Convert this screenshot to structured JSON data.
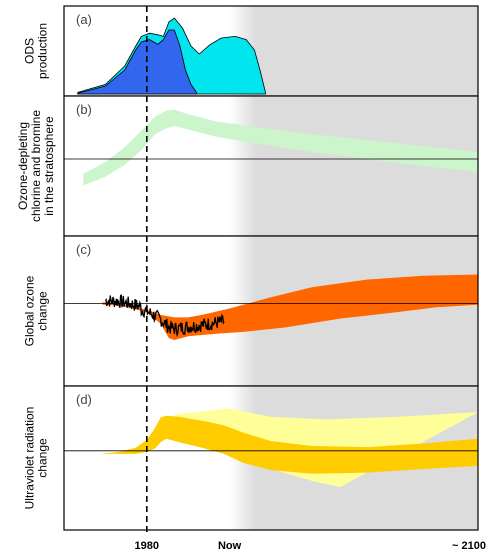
{
  "chart_data": {
    "type": "area",
    "x_axis": {
      "tick_labels": [
        "1980",
        "Now",
        "~ 2100"
      ],
      "tick_years": [
        1980,
        2010,
        2100
      ],
      "range": [
        1950,
        2100
      ]
    },
    "vertical_marker_year": 1980,
    "future_shading": {
      "from_year": 2010,
      "color": "#dcdcdc"
    },
    "panels": [
      {
        "label": "(a)",
        "ylabel_lines": [
          "ODS",
          "production"
        ],
        "baseline": false,
        "series": [
          {
            "color": "#00e5ee",
            "upper": [
              [
                1955,
                0.02
              ],
              [
                1965,
                0.12
              ],
              [
                1972,
                0.35
              ],
              [
                1976,
                0.6
              ],
              [
                1978,
                0.72
              ],
              [
                1981,
                0.76
              ],
              [
                1984,
                0.74
              ],
              [
                1986,
                0.72
              ],
              [
                1988,
                0.9
              ],
              [
                1990,
                0.95
              ],
              [
                1993,
                0.82
              ],
              [
                1996,
                0.6
              ],
              [
                1999,
                0.5
              ],
              [
                2003,
                0.62
              ],
              [
                2007,
                0.7
              ],
              [
                2012,
                0.72
              ],
              [
                2016,
                0.68
              ],
              [
                2019,
                0.55
              ],
              [
                2021,
                0.3
              ],
              [
                2023,
                0.02
              ]
            ],
            "lower": [
              [
                1955,
                0.0
              ],
              [
                2023,
                0.0
              ]
            ]
          },
          {
            "color": "#3366ee",
            "upper": [
              [
                1955,
                0.01
              ],
              [
                1965,
                0.1
              ],
              [
                1972,
                0.3
              ],
              [
                1976,
                0.55
              ],
              [
                1978,
                0.65
              ],
              [
                1981,
                0.68
              ],
              [
                1984,
                0.62
              ],
              [
                1986,
                0.68
              ],
              [
                1988,
                0.8
              ],
              [
                1990,
                0.8
              ],
              [
                1992,
                0.6
              ],
              [
                1994,
                0.3
              ],
              [
                1996,
                0.12
              ],
              [
                1998,
                0.02
              ]
            ],
            "lower": [
              [
                1955,
                0.0
              ],
              [
                1998,
                0.0
              ]
            ]
          }
        ]
      },
      {
        "label": "(b)",
        "ylabel_lines": [
          "Ozone-depleting",
          "chlorine and bromine",
          "in the stratosphere"
        ],
        "baseline": true,
        "series": [
          {
            "color": "#ccf5cc",
            "upper": [
              [
                1957,
                -0.25
              ],
              [
                1965,
                -0.05
              ],
              [
                1972,
                0.2
              ],
              [
                1978,
                0.48
              ],
              [
                1983,
                0.72
              ],
              [
                1987,
                0.82
              ],
              [
                1990,
                0.84
              ],
              [
                1995,
                0.76
              ],
              [
                2005,
                0.64
              ],
              [
                2020,
                0.54
              ],
              [
                2040,
                0.42
              ],
              [
                2060,
                0.32
              ],
              [
                2080,
                0.22
              ],
              [
                2100,
                0.12
              ]
            ],
            "lower": [
              [
                1957,
                -0.45
              ],
              [
                1965,
                -0.3
              ],
              [
                1972,
                -0.1
              ],
              [
                1978,
                0.15
              ],
              [
                1983,
                0.42
              ],
              [
                1987,
                0.52
              ],
              [
                1990,
                0.56
              ],
              [
                1995,
                0.5
              ],
              [
                2005,
                0.38
              ],
              [
                2020,
                0.26
              ],
              [
                2040,
                0.12
              ],
              [
                2060,
                0.0
              ],
              [
                2080,
                -0.12
              ],
              [
                2100,
                -0.22
              ]
            ]
          }
        ]
      },
      {
        "label": "(c)",
        "ylabel_lines": [
          "Global ozone",
          "change"
        ],
        "baseline": true,
        "series": [
          {
            "color": "#ff6600",
            "upper": [
              [
                1964,
                0.02
              ],
              [
                1970,
                0.0
              ],
              [
                1975,
                -0.05
              ],
              [
                1980,
                -0.1
              ],
              [
                1985,
                -0.18
              ],
              [
                1990,
                -0.22
              ],
              [
                1995,
                -0.22
              ],
              [
                2000,
                -0.18
              ],
              [
                2010,
                -0.08
              ],
              [
                2025,
                0.1
              ],
              [
                2040,
                0.26
              ],
              [
                2060,
                0.38
              ],
              [
                2080,
                0.44
              ],
              [
                2100,
                0.46
              ]
            ],
            "lower": [
              [
                1964,
                -0.02
              ],
              [
                1970,
                -0.03
              ],
              [
                1975,
                -0.08
              ],
              [
                1980,
                -0.14
              ],
              [
                1985,
                -0.32
              ],
              [
                1988,
                -0.55
              ],
              [
                1990,
                -0.58
              ],
              [
                1995,
                -0.52
              ],
              [
                2005,
                -0.48
              ],
              [
                2015,
                -0.45
              ],
              [
                2030,
                -0.38
              ],
              [
                2050,
                -0.24
              ],
              [
                2070,
                -0.14
              ],
              [
                2085,
                -0.06
              ],
              [
                2100,
                -0.02
              ]
            ]
          }
        ],
        "observations": {
          "color": "#000000",
          "from_year": 1965,
          "to_year": 2008
        }
      },
      {
        "label": "(d)",
        "ylabel_lines": [
          "Ultraviolet radiation",
          "change"
        ],
        "baseline": true,
        "series": [
          {
            "color": "#ffff99",
            "upper": [
              [
                1990,
                0.6
              ],
              [
                2000,
                0.65
              ],
              [
                2010,
                0.7
              ],
              [
                2025,
                0.56
              ],
              [
                2045,
                0.52
              ],
              [
                2070,
                0.56
              ],
              [
                2100,
                0.64
              ]
            ],
            "lower": [
              [
                1990,
                0.3
              ],
              [
                2000,
                0.2
              ],
              [
                2010,
                0.05
              ],
              [
                2025,
                -0.3
              ],
              [
                2040,
                -0.5
              ],
              [
                2050,
                -0.6
              ]
            ]
          },
          {
            "color": "#ffcc00",
            "upper": [
              [
                1963,
                -0.05
              ],
              [
                1970,
                -0.02
              ],
              [
                1976,
                0.05
              ],
              [
                1980,
                0.18
              ],
              [
                1983,
                0.38
              ],
              [
                1985,
                0.55
              ],
              [
                1987,
                0.58
              ],
              [
                1992,
                0.56
              ],
              [
                1997,
                0.52
              ],
              [
                2002,
                0.48
              ],
              [
                2008,
                0.42
              ],
              [
                2015,
                0.3
              ],
              [
                2025,
                0.16
              ],
              [
                2040,
                0.08
              ],
              [
                2060,
                0.06
              ],
              [
                2080,
                0.12
              ],
              [
                2100,
                0.2
              ]
            ],
            "lower": [
              [
                1963,
                -0.05
              ],
              [
                1970,
                -0.05
              ],
              [
                1976,
                -0.05
              ],
              [
                1980,
                -0.02
              ],
              [
                1983,
                0.04
              ],
              [
                1985,
                0.14
              ],
              [
                1987,
                0.2
              ],
              [
                1992,
                0.14
              ],
              [
                2000,
                0.05
              ],
              [
                2008,
                -0.05
              ],
              [
                2015,
                -0.2
              ],
              [
                2025,
                -0.32
              ],
              [
                2040,
                -0.38
              ],
              [
                2060,
                -0.36
              ],
              [
                2080,
                -0.3
              ],
              [
                2100,
                -0.25
              ]
            ]
          }
        ]
      }
    ]
  }
}
